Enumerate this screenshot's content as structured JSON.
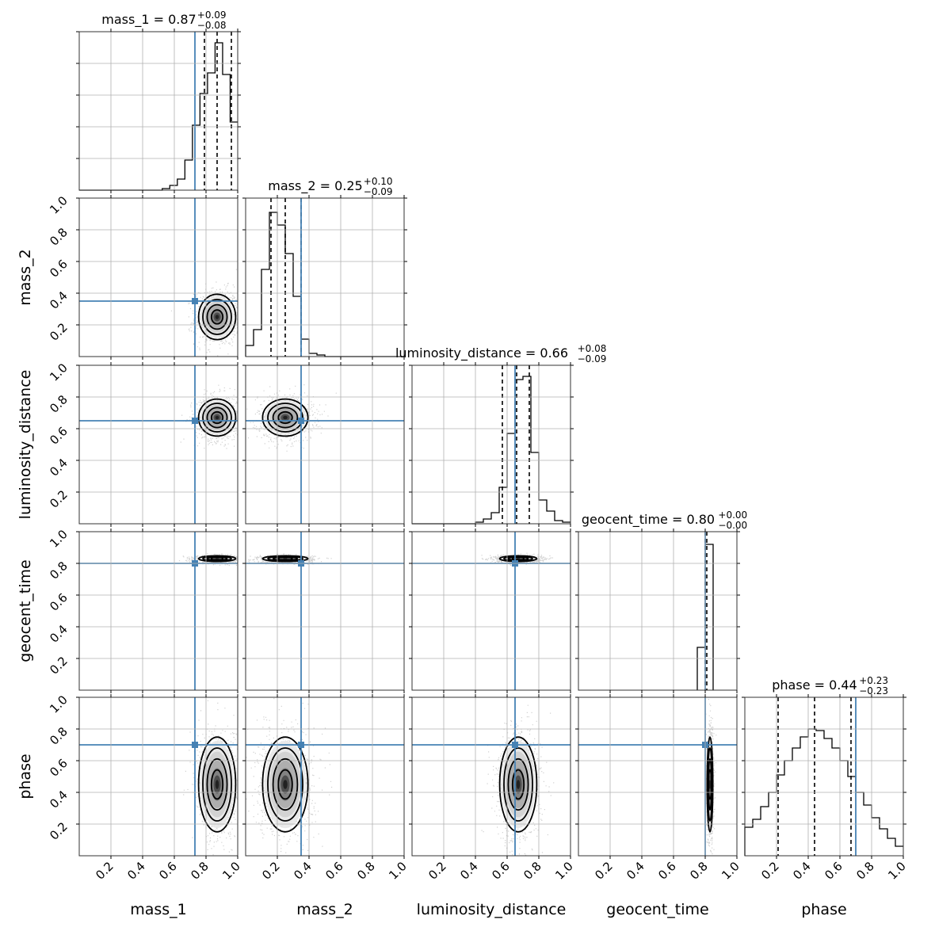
{
  "chart_data": {
    "type": "corner",
    "parameters": [
      {
        "name": "mass_1",
        "label": "mass_1",
        "median": 0.87,
        "plus": "0.09",
        "minus": "0.08",
        "median_text": "0.87",
        "truth": 0.73,
        "quantiles": [
          0.79,
          0.87,
          0.96
        ],
        "hist": [
          0,
          0,
          0,
          0,
          0,
          0,
          0,
          0,
          0,
          0,
          0,
          0.01,
          0.03,
          0.07,
          0.19,
          0.41,
          0.61,
          0.74,
          0.93,
          0.73,
          0.43
        ],
        "title": "mass_1 = 0.87"
      },
      {
        "name": "mass_2",
        "label": "mass_2",
        "median": 0.25,
        "plus": "0.10",
        "minus": "0.09",
        "median_text": "0.25",
        "truth": 0.35,
        "quantiles": [
          0.16,
          0.25,
          0.35
        ],
        "hist": [
          0.07,
          0.17,
          0.55,
          0.91,
          0.83,
          0.65,
          0.38,
          0.11,
          0.02,
          0.01,
          0,
          0,
          0,
          0,
          0,
          0,
          0,
          0,
          0,
          0
        ],
        "title": "mass_2 = 0.25"
      },
      {
        "name": "luminosity_distance",
        "label": "luminosity_distance",
        "median": 0.66,
        "plus": "0.08",
        "minus": "0.09",
        "median_text": "0.66",
        "truth": 0.65,
        "quantiles": [
          0.57,
          0.66,
          0.74
        ],
        "hist": [
          0,
          0,
          0,
          0,
          0,
          0,
          0,
          0,
          0.01,
          0.03,
          0.07,
          0.23,
          0.57,
          0.91,
          0.93,
          0.45,
          0.15,
          0.08,
          0.02,
          0.01
        ],
        "title": "luminosity_distance = 0.66"
      },
      {
        "name": "geocent_time",
        "label": "geocent_time",
        "median": 0.8,
        "plus": "0.00",
        "minus": "0.00",
        "median_text": "0.80",
        "truth": 0.8,
        "quantiles": [
          0.8,
          0.8,
          0.81
        ],
        "hist_bins": [
          [
            0.75,
            0.8,
            0.27
          ],
          [
            0.8,
            0.85,
            0.92
          ]
        ],
        "title": "geocent_time = 0.80"
      },
      {
        "name": "phase",
        "label": "phase",
        "median": 0.44,
        "plus": "0.23",
        "minus": "0.23",
        "median_text": "0.44",
        "truth": 0.7,
        "quantiles": [
          0.21,
          0.44,
          0.67
        ],
        "hist": [
          0.18,
          0.23,
          0.31,
          0.4,
          0.51,
          0.6,
          0.68,
          0.75,
          0.8,
          0.79,
          0.74,
          0.68,
          0.6,
          0.5,
          0.4,
          0.32,
          0.24,
          0.17,
          0.11,
          0.06
        ],
        "title": "phase = 0.44"
      }
    ],
    "xlim": [
      0,
      1
    ],
    "ylim": [
      0,
      1
    ],
    "ticks": [
      0.2,
      0.4,
      0.6,
      0.8,
      1.0
    ],
    "tick_labels": [
      "0.2",
      "0.4",
      "0.6",
      "0.8",
      "1.0"
    ],
    "grid": true,
    "truth_color": "#4682b4",
    "hist_color": "#000000"
  }
}
